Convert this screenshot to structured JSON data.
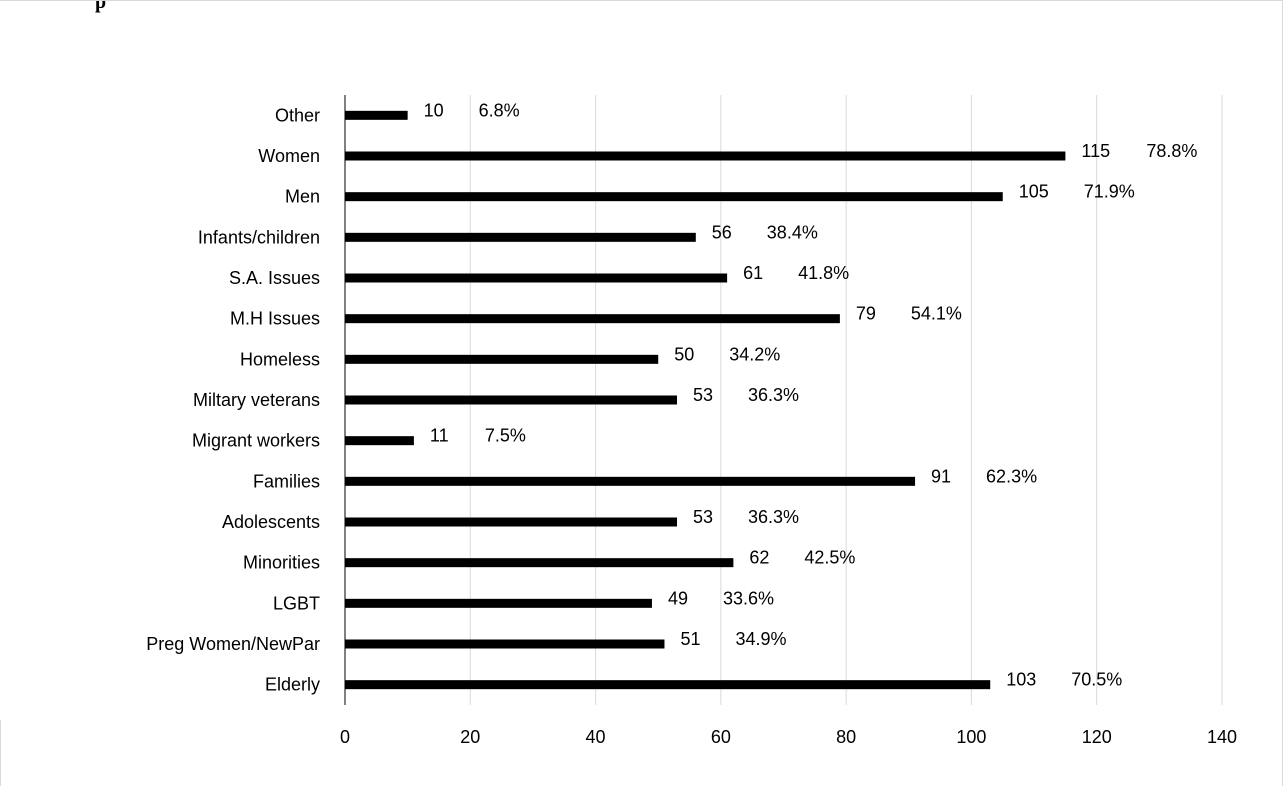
{
  "chart_data": {
    "type": "bar",
    "orientation": "horizontal",
    "title": "",
    "xlabel": "",
    "ylabel": "",
    "xlim": [
      0,
      140
    ],
    "x_ticks": [
      0,
      20,
      40,
      60,
      80,
      100,
      120,
      140
    ],
    "grid": true,
    "legend": "none",
    "bar_color": "#000000",
    "grid_color": "#d9d9d9",
    "categories": [
      "Other",
      "Women",
      "Men",
      "Infants/children",
      "S.A. Issues",
      "M.H Issues",
      "Homeless",
      "Miltary veterans",
      "Migrant workers",
      "Families",
      "Adolescents",
      "Minorities",
      "LGBT",
      "Preg Women/NewPar",
      "Elderly"
    ],
    "values": [
      10,
      115,
      105,
      56,
      61,
      79,
      50,
      53,
      11,
      91,
      53,
      62,
      49,
      51,
      103
    ],
    "value_labels": [
      "10",
      "115",
      "105",
      "56",
      "61",
      "79",
      "50",
      "53",
      "11",
      "91",
      "53",
      "62",
      "49",
      "51",
      "103"
    ],
    "percent_labels": [
      "6.8%",
      "78.8%",
      "71.9%",
      "38.4%",
      "41.8%",
      "54.1%",
      "34.2%",
      "36.3%",
      "7.5%",
      "62.3%",
      "36.3%",
      "42.5%",
      "33.6%",
      "34.9%",
      "70.5%"
    ]
  }
}
